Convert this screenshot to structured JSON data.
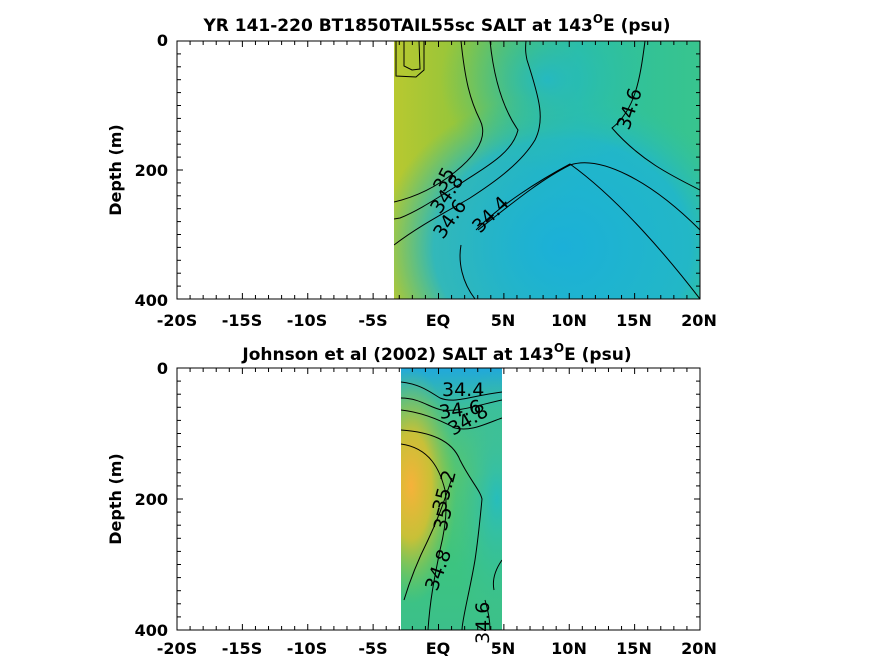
{
  "chart_data": [
    {
      "type": "heatmap",
      "title_main": "YR 141-220 BT1850TAIL55sc SALT at 143",
      "title_sup": "O",
      "title_end": "E (psu)",
      "ylabel": "Depth (m)",
      "xlabel": "",
      "xlim": [
        -20,
        20
      ],
      "ylim": [
        0,
        400
      ],
      "data_xrange": [
        -3.3,
        20
      ],
      "x_ticks": [
        -20,
        -15,
        -10,
        -5,
        0,
        5,
        10,
        15,
        20
      ],
      "x_tick_labels": [
        "-20S",
        "-15S",
        "-10S",
        "-5S",
        "EQ",
        "5N",
        "10N",
        "15N",
        "20N"
      ],
      "y_ticks": [
        0,
        200,
        400
      ],
      "y_tick_labels": [
        "0",
        "200",
        "400"
      ],
      "contour_labels": [
        "35",
        "34.8",
        "34.6",
        "34.4",
        "34.6"
      ]
    },
    {
      "type": "heatmap",
      "title_main": "Johnson et al (2002) SALT at 143",
      "title_sup": "O",
      "title_end": "E (psu)",
      "ylabel": "Depth (m)",
      "xlabel": "",
      "xlim": [
        -20,
        20
      ],
      "ylim": [
        0,
        400
      ],
      "data_xrange": [
        -2.7,
        5
      ],
      "x_ticks": [
        -20,
        -15,
        -10,
        -5,
        0,
        5,
        10,
        15,
        20
      ],
      "x_tick_labels": [
        "-20S",
        "-15S",
        "-10S",
        "-5S",
        "EQ",
        "5N",
        "10N",
        "15N",
        "20N"
      ],
      "y_ticks": [
        0,
        200,
        400
      ],
      "y_tick_labels": [
        "0",
        "200",
        "400"
      ],
      "contour_labels": [
        "34.4",
        "34.6",
        "34.8",
        "35.2",
        "35",
        "34.8",
        "34.6"
      ]
    }
  ],
  "colors": {
    "salinity_low": "#1eb2d6",
    "salinity_mid": "#3cc48c",
    "salinity_high": "#b8c830",
    "salinity_max": "#f2b43a"
  }
}
